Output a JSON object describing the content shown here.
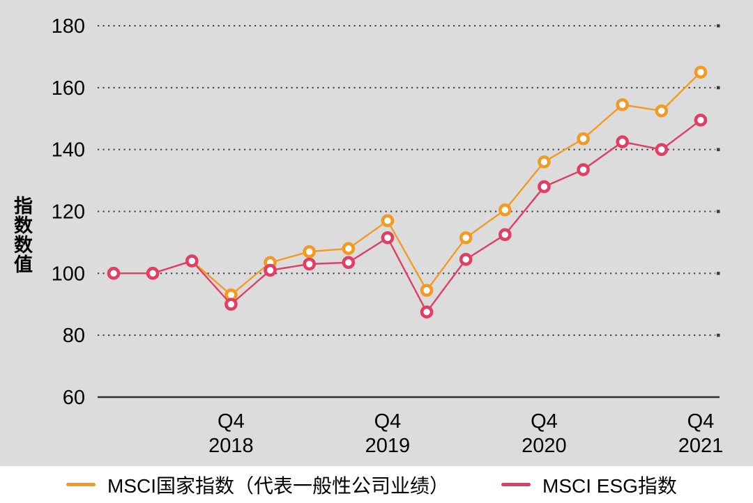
{
  "chart_style": {
    "panel_bg": "#DCDCDC",
    "grid_color": "#3C3C3C",
    "axis_color": "#2E2E2E",
    "text_color": "#000000",
    "marker_fill": "#FFFFFF"
  },
  "chart_data": {
    "type": "line",
    "title": "",
    "xlabel": "",
    "ylabel": "指数数值",
    "ylim": [
      60,
      180
    ],
    "yticks": [
      60,
      80,
      100,
      120,
      140,
      160,
      180
    ],
    "grid": "horizontal-dotted",
    "legend_position": "bottom",
    "x": [
      "Q1 2018",
      "Q2 2018",
      "Q3 2018",
      "Q4 2018",
      "Q1 2019",
      "Q2 2019",
      "Q3 2019",
      "Q4 2019",
      "Q1 2020",
      "Q2 2020",
      "Q3 2020",
      "Q4 2020",
      "Q1 2021",
      "Q2 2021",
      "Q3 2021",
      "Q4 2021"
    ],
    "xticks": [
      {
        "index": 3,
        "quarter": "Q4",
        "year": "2018"
      },
      {
        "index": 7,
        "quarter": "Q4",
        "year": "2019"
      },
      {
        "index": 11,
        "quarter": "Q4",
        "year": "2020"
      },
      {
        "index": 15,
        "quarter": "Q4",
        "year": "2021"
      }
    ],
    "series": [
      {
        "name": "MSCI国家指数（代表一般性公司业绩）",
        "color": "#F39A24",
        "values": [
          100,
          100,
          104,
          93,
          103.5,
          107,
          108,
          117,
          94.5,
          111.5,
          120.5,
          136,
          143.5,
          154.5,
          152.5,
          165
        ]
      },
      {
        "name": "MSCI ESG指数",
        "color": "#E23E63",
        "values": [
          100,
          100,
          104,
          90,
          101,
          103,
          103.5,
          111.5,
          87.5,
          104.5,
          112.5,
          128,
          133.5,
          142.5,
          140,
          149.5
        ]
      }
    ]
  }
}
